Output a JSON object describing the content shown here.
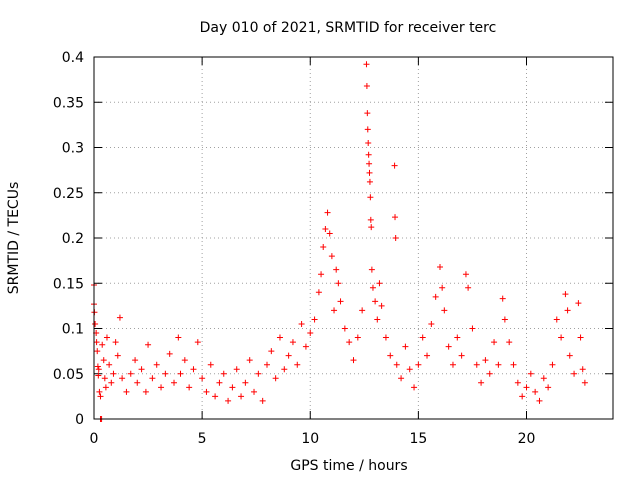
{
  "chart_data": {
    "type": "scatter",
    "title": "Day 010 of 2021, SRMTID for receiver terc",
    "xlabel": "GPS time / hours",
    "ylabel": "SRMTID / TECUs",
    "xlim": [
      0,
      24
    ],
    "ylim": [
      0,
      0.4
    ],
    "xticks": [
      0,
      5,
      10,
      15,
      20
    ],
    "yticks": [
      0,
      0.05,
      0.1,
      0.15,
      0.2,
      0.25,
      0.3,
      0.35,
      0.4
    ],
    "ytick_labels": [
      "0",
      "0.05",
      "0.1",
      "0.15",
      "0.2",
      "0.25",
      "0.3",
      "0.35",
      "0.4"
    ],
    "grid": true,
    "marker": "+",
    "color": "#ff0000",
    "series": [
      {
        "name": "SRMTID",
        "points": [
          [
            0.0,
            0.148
          ],
          [
            0.0,
            0.127
          ],
          [
            0.02,
            0.118
          ],
          [
            0.05,
            0.105
          ],
          [
            0.1,
            0.095
          ],
          [
            0.12,
            0.085
          ],
          [
            0.15,
            0.075
          ],
          [
            0.18,
            0.058
          ],
          [
            0.2,
            0.048
          ],
          [
            0.22,
            0.055
          ],
          [
            0.25,
            0.03
          ],
          [
            0.3,
            0.025
          ],
          [
            0.3,
            0.0
          ],
          [
            0.35,
            0.0
          ],
          [
            0.38,
            0.082
          ],
          [
            0.45,
            0.065
          ],
          [
            0.5,
            0.045
          ],
          [
            0.55,
            0.035
          ],
          [
            0.6,
            0.09
          ],
          [
            0.7,
            0.06
          ],
          [
            0.8,
            0.04
          ],
          [
            0.9,
            0.05
          ],
          [
            1.0,
            0.085
          ],
          [
            1.1,
            0.07
          ],
          [
            1.2,
            0.112
          ],
          [
            1.3,
            0.045
          ],
          [
            1.5,
            0.03
          ],
          [
            1.7,
            0.05
          ],
          [
            1.9,
            0.065
          ],
          [
            2.0,
            0.04
          ],
          [
            2.2,
            0.055
          ],
          [
            2.4,
            0.03
          ],
          [
            2.5,
            0.082
          ],
          [
            2.7,
            0.045
          ],
          [
            2.9,
            0.06
          ],
          [
            3.1,
            0.035
          ],
          [
            3.3,
            0.05
          ],
          [
            3.5,
            0.072
          ],
          [
            3.7,
            0.04
          ],
          [
            3.9,
            0.09
          ],
          [
            4.0,
            0.05
          ],
          [
            4.2,
            0.065
          ],
          [
            4.4,
            0.035
          ],
          [
            4.6,
            0.055
          ],
          [
            4.8,
            0.085
          ],
          [
            5.0,
            0.045
          ],
          [
            5.2,
            0.03
          ],
          [
            5.4,
            0.06
          ],
          [
            5.6,
            0.025
          ],
          [
            5.8,
            0.04
          ],
          [
            6.0,
            0.05
          ],
          [
            6.2,
            0.02
          ],
          [
            6.4,
            0.035
          ],
          [
            6.6,
            0.055
          ],
          [
            6.8,
            0.025
          ],
          [
            7.0,
            0.04
          ],
          [
            7.2,
            0.065
          ],
          [
            7.4,
            0.03
          ],
          [
            7.6,
            0.05
          ],
          [
            7.8,
            0.02
          ],
          [
            8.0,
            0.06
          ],
          [
            8.2,
            0.075
          ],
          [
            8.4,
            0.045
          ],
          [
            8.6,
            0.09
          ],
          [
            8.8,
            0.055
          ],
          [
            9.0,
            0.07
          ],
          [
            9.2,
            0.085
          ],
          [
            9.4,
            0.06
          ],
          [
            9.6,
            0.105
          ],
          [
            9.8,
            0.08
          ],
          [
            10.0,
            0.095
          ],
          [
            10.2,
            0.11
          ],
          [
            10.4,
            0.14
          ],
          [
            10.5,
            0.16
          ],
          [
            10.6,
            0.19
          ],
          [
            10.7,
            0.21
          ],
          [
            10.8,
            0.228
          ],
          [
            10.9,
            0.205
          ],
          [
            11.0,
            0.18
          ],
          [
            11.1,
            0.12
          ],
          [
            11.2,
            0.165
          ],
          [
            11.3,
            0.15
          ],
          [
            11.4,
            0.13
          ],
          [
            11.6,
            0.1
          ],
          [
            11.8,
            0.085
          ],
          [
            12.0,
            0.065
          ],
          [
            12.2,
            0.09
          ],
          [
            12.4,
            0.12
          ],
          [
            12.6,
            0.392
          ],
          [
            12.62,
            0.368
          ],
          [
            12.64,
            0.338
          ],
          [
            12.66,
            0.32
          ],
          [
            12.68,
            0.305
          ],
          [
            12.7,
            0.292
          ],
          [
            12.72,
            0.282
          ],
          [
            12.74,
            0.272
          ],
          [
            12.76,
            0.262
          ],
          [
            12.78,
            0.245
          ],
          [
            12.8,
            0.22
          ],
          [
            12.82,
            0.212
          ],
          [
            12.85,
            0.165
          ],
          [
            12.9,
            0.145
          ],
          [
            13.0,
            0.13
          ],
          [
            13.1,
            0.11
          ],
          [
            13.2,
            0.15
          ],
          [
            13.3,
            0.125
          ],
          [
            13.5,
            0.09
          ],
          [
            13.7,
            0.07
          ],
          [
            13.9,
            0.28
          ],
          [
            13.92,
            0.223
          ],
          [
            13.95,
            0.2
          ],
          [
            14.0,
            0.06
          ],
          [
            14.2,
            0.045
          ],
          [
            14.4,
            0.08
          ],
          [
            14.6,
            0.055
          ],
          [
            14.8,
            0.035
          ],
          [
            15.0,
            0.06
          ],
          [
            15.2,
            0.09
          ],
          [
            15.4,
            0.07
          ],
          [
            15.6,
            0.105
          ],
          [
            15.8,
            0.135
          ],
          [
            16.0,
            0.168
          ],
          [
            16.1,
            0.145
          ],
          [
            16.2,
            0.12
          ],
          [
            16.4,
            0.08
          ],
          [
            16.6,
            0.06
          ],
          [
            16.8,
            0.09
          ],
          [
            17.0,
            0.07
          ],
          [
            17.2,
            0.16
          ],
          [
            17.3,
            0.145
          ],
          [
            17.5,
            0.1
          ],
          [
            17.7,
            0.06
          ],
          [
            17.9,
            0.04
          ],
          [
            18.1,
            0.065
          ],
          [
            18.3,
            0.05
          ],
          [
            18.5,
            0.085
          ],
          [
            18.7,
            0.06
          ],
          [
            18.9,
            0.133
          ],
          [
            19.0,
            0.11
          ],
          [
            19.2,
            0.085
          ],
          [
            19.4,
            0.06
          ],
          [
            19.6,
            0.04
          ],
          [
            19.8,
            0.025
          ],
          [
            20.0,
            0.035
          ],
          [
            20.2,
            0.05
          ],
          [
            20.4,
            0.03
          ],
          [
            20.6,
            0.02
          ],
          [
            20.8,
            0.045
          ],
          [
            21.0,
            0.035
          ],
          [
            21.2,
            0.06
          ],
          [
            21.4,
            0.11
          ],
          [
            21.6,
            0.09
          ],
          [
            21.8,
            0.138
          ],
          [
            21.9,
            0.12
          ],
          [
            22.0,
            0.07
          ],
          [
            22.2,
            0.05
          ],
          [
            22.4,
            0.128
          ],
          [
            22.5,
            0.09
          ],
          [
            22.6,
            0.055
          ],
          [
            22.7,
            0.04
          ]
        ]
      }
    ]
  }
}
